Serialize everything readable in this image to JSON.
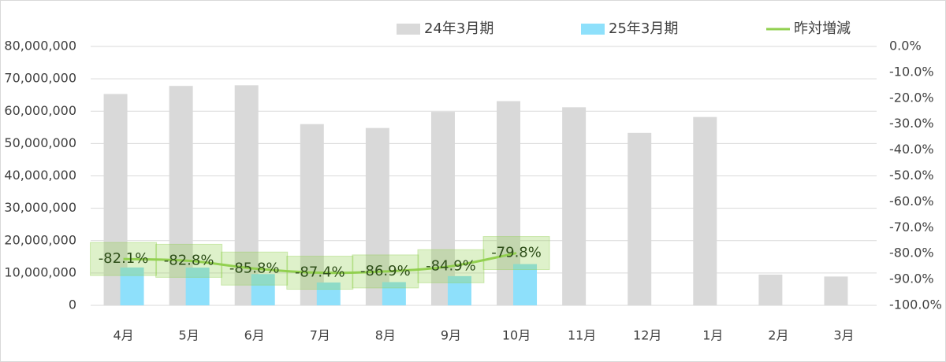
{
  "chart_data": {
    "type": "bar",
    "categories": [
      "4月",
      "5月",
      "6月",
      "7月",
      "8月",
      "9月",
      "10月",
      "11月",
      "12月",
      "1月",
      "2月",
      "3月"
    ],
    "series": [
      {
        "name": "24年3月期",
        "color": "#d9d9d9",
        "type": "bar",
        "values": [
          65300000,
          67800000,
          68000000,
          56000000,
          54800000,
          59800000,
          63100000,
          61200000,
          53300000,
          58200000,
          9500000,
          8900000
        ]
      },
      {
        "name": "25年3月期",
        "color": "#8ee0fb",
        "type": "bar",
        "values": [
          11700000,
          11660000,
          9660000,
          7060000,
          7180000,
          9030000,
          12750000,
          null,
          null,
          null,
          null,
          null
        ]
      },
      {
        "name": "昨対増減",
        "color": "#92d050",
        "type": "line",
        "axis": "y2",
        "values": [
          -82.1,
          -82.8,
          -85.8,
          -87.4,
          -86.9,
          -84.9,
          -79.8,
          null,
          null,
          null,
          null,
          null
        ],
        "value_labels": [
          "-82.1%",
          "-82.8%",
          "-85.8%",
          "-87.4%",
          "-86.9%",
          "-84.9%",
          "-79.8%",
          null,
          null,
          null,
          null,
          null
        ]
      }
    ],
    "ylim": [
      0,
      80000000
    ],
    "yticks": [
      {
        "value": 0,
        "label": "0"
      },
      {
        "value": 10000000,
        "label": "10,000,000"
      },
      {
        "value": 20000000,
        "label": "20,000,000"
      },
      {
        "value": 30000000,
        "label": "30,000,000"
      },
      {
        "value": 40000000,
        "label": "40,000,000"
      },
      {
        "value": 50000000,
        "label": "50,000,000"
      },
      {
        "value": 60000000,
        "label": "60,000,000"
      },
      {
        "value": 70000000,
        "label": "70,000,000"
      },
      {
        "value": 80000000,
        "label": "80,000,000"
      }
    ],
    "y2lim": [
      -100,
      0
    ],
    "y2ticks": [
      {
        "value": 0,
        "label": "0.0%"
      },
      {
        "value": -10,
        "label": "-10.0%"
      },
      {
        "value": -20,
        "label": "-20.0%"
      },
      {
        "value": -30,
        "label": "-30.0%"
      },
      {
        "value": -40,
        "label": "-40.0%"
      },
      {
        "value": -50,
        "label": "-50.0%"
      },
      {
        "value": -60,
        "label": "-60.0%"
      },
      {
        "value": -70,
        "label": "-70.0%"
      },
      {
        "value": -80,
        "label": "-80.0%"
      },
      {
        "value": -90,
        "label": "-90.0%"
      },
      {
        "value": -100,
        "label": "-100.0%"
      }
    ],
    "grid": true,
    "legend": "top"
  }
}
